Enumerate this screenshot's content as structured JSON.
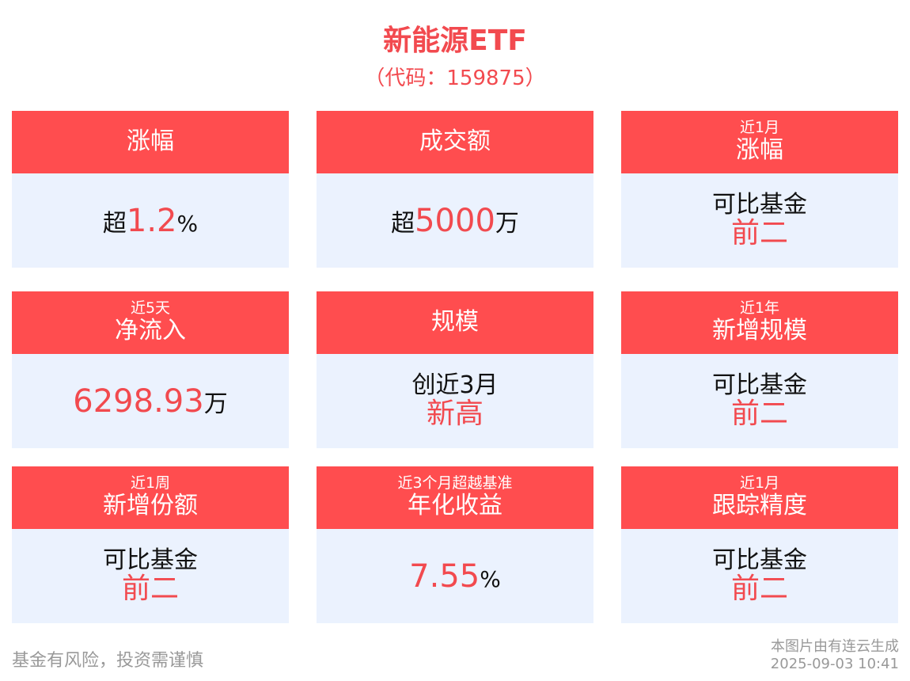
{
  "title": "新能源ETF",
  "code": "（代码：159875）",
  "cards": [
    {
      "sub": "",
      "label": "涨幅",
      "prefix": "超",
      "value": "1.2",
      "unit": "%"
    },
    {
      "sub": "",
      "label": "成交额",
      "prefix": "超",
      "value": "5000",
      "unit": "万"
    },
    {
      "sub": "近1月",
      "label": "涨幅",
      "line1": "可比基金",
      "line2": "前二"
    },
    {
      "sub": "近5天",
      "label": "净流入",
      "prefix": "",
      "value": "6298.93",
      "unit": "万"
    },
    {
      "sub": "",
      "label": "规模",
      "line1": "创近3月",
      "line2": "新高"
    },
    {
      "sub": "近1年",
      "label": "新增规模",
      "line1": "可比基金",
      "line2": "前二"
    },
    {
      "sub": "近1周",
      "label": "新增份额",
      "line1": "可比基金",
      "line2": "前二"
    },
    {
      "sub": "近3个月超越基准",
      "label": "年化收益",
      "prefix": "",
      "value": "7.55",
      "unit": "%"
    },
    {
      "sub": "近1月",
      "label": "跟踪精度",
      "line1": "可比基金",
      "line2": "前二"
    }
  ],
  "footer": {
    "disclaimer": "基金有风险，投资需谨慎",
    "source": "本图片由有连云生成",
    "timestamp": "2025-09-03 10:41"
  },
  "colors": {
    "accent": "#ff4d4f",
    "value_red": "#f24a4f",
    "body_bg": "#ebf2fe"
  }
}
